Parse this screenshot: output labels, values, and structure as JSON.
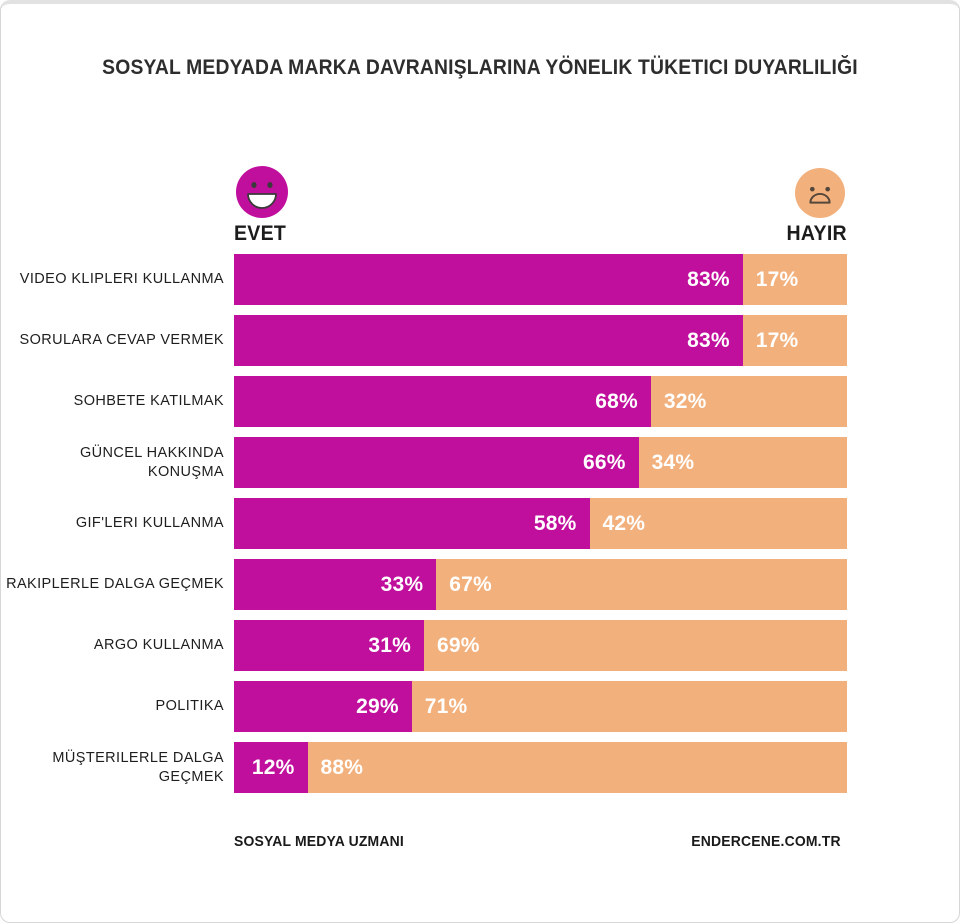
{
  "page": {
    "title": "SOSYAL MEDYADA MARKA DAVRANIŞLARINA YÖNELIK TÜKETICI DUYARLILIĞI",
    "footer_left": "SOSYAL MEDYA UZMANI",
    "footer_right": "ENDERCENE.COM.TR"
  },
  "legend": {
    "yes_label": "EVET",
    "no_label": "HAYIR"
  },
  "colors": {
    "yes": "#c00f9d",
    "no": "#f2b07c",
    "value_text": "#ffffff",
    "face_feature_yes": "#3a3a3a",
    "face_feature_no": "#54463a"
  },
  "chart_data": {
    "type": "bar",
    "orientation": "horizontal_stacked",
    "title": "SOSYAL MEDYADA MARKA DAVRANIŞLARINA YÖNELIK TÜKETICI DUYARLILIĞI",
    "value_suffix": "%",
    "xlim": [
      0,
      100
    ],
    "grid": false,
    "legend_position": "top",
    "categories": [
      "VIDEO KLIPLERI KULLANMA",
      "SORULARA CEVAP VERMEK",
      "SOHBETE KATILMAK",
      "GÜNCEL HAKKINDA KONUŞMA",
      "GIF'LERI KULLANMA",
      "RAKIPLERLE DALGA GEÇMEK",
      "ARGO KULLANMA",
      "POLITIKA",
      "MÜŞTERILERLE DALGA GEÇMEK"
    ],
    "series": [
      {
        "name": "EVET",
        "color": "#c00f9d",
        "values": [
          83,
          83,
          68,
          66,
          58,
          33,
          31,
          29,
          12
        ]
      },
      {
        "name": "HAYIR",
        "color": "#f2b07c",
        "values": [
          17,
          17,
          32,
          34,
          42,
          67,
          69,
          71,
          88
        ]
      }
    ]
  }
}
